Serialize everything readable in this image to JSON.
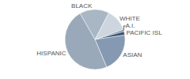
{
  "chart_data": {
    "type": "pie",
    "categories": [
      "BLACK",
      "WHITE",
      "A.I.",
      "PACIFIC ISL",
      "ASIAN",
      "HISPANIC"
    ],
    "values": [
      16,
      12,
      1,
      2,
      21,
      48
    ],
    "colors": [
      "#a9b6c4",
      "#cdd5de",
      "#7187a0",
      "#3f5675",
      "#8599b2",
      "#9aa9ba"
    ]
  }
}
